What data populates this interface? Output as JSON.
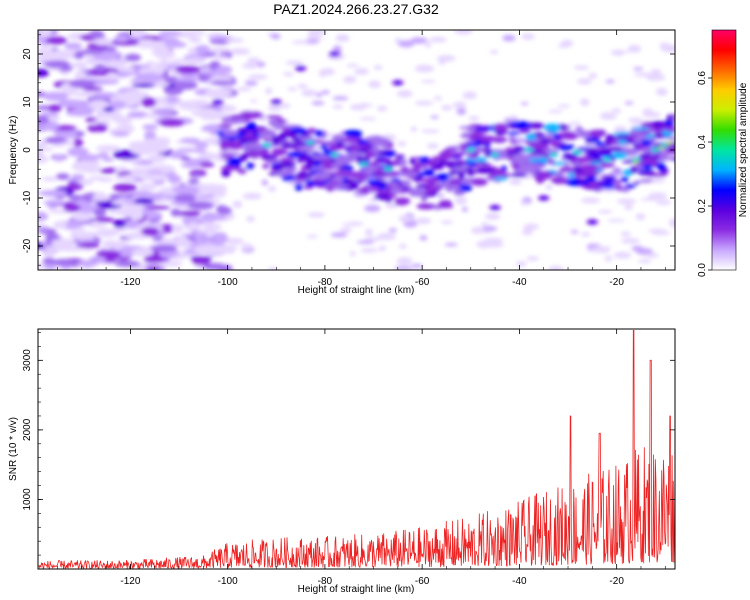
{
  "title": "PAZ1.2024.266.23.27.G32",
  "chart_data": [
    {
      "type": "heatmap",
      "xlabel": "Height of straight line (km)",
      "ylabel": "Frequency (Hz)",
      "xlim": [
        -139,
        -8
      ],
      "ylim": [
        -25,
        25
      ],
      "x_ticks": [
        -120,
        -100,
        -80,
        -60,
        -40,
        -20
      ],
      "y_ticks": [
        -20,
        -10,
        0,
        10,
        20
      ],
      "colorbar": {
        "label": "Normalized spectral amplitude",
        "range": [
          0,
          0.75
        ],
        "ticks": [
          0.0,
          0.2,
          0.4,
          0.6
        ],
        "colors": [
          "#ffffff",
          "#c8a8ff",
          "#8a2be2",
          "#5a00e0",
          "#0000ff",
          "#00b4ff",
          "#00e6a0",
          "#33dd00",
          "#ccee00",
          "#ffcc00",
          "#ff6600",
          "#ff0000",
          "#ff0066"
        ]
      },
      "ridge": [
        {
          "x": -100,
          "y": 1
        },
        {
          "x": -92,
          "y": 2
        },
        {
          "x": -85,
          "y": -2
        },
        {
          "x": -75,
          "y": -2
        },
        {
          "x": -65,
          "y": -5
        },
        {
          "x": -58,
          "y": -8
        },
        {
          "x": -50,
          "y": -1
        },
        {
          "x": -40,
          "y": 0
        },
        {
          "x": -30,
          "y": -1
        },
        {
          "x": -20,
          "y": -3
        },
        {
          "x": -10,
          "y": 1
        }
      ],
      "noise_region": {
        "x_from": -139,
        "x_to": -100,
        "y_from": -25,
        "y_to": 25
      }
    },
    {
      "type": "line",
      "xlabel": "Height of straight line (km)",
      "ylabel": "SNR (10 * v/v)",
      "xlim": [
        -139,
        -8
      ],
      "ylim": [
        0,
        3450
      ],
      "x_ticks": [
        -120,
        -100,
        -80,
        -60,
        -40,
        -20
      ],
      "y_ticks": [
        1000,
        2000,
        3000
      ],
      "color": "#ee2222",
      "envelope": [
        {
          "x": -139,
          "y": 110
        },
        {
          "x": -120,
          "y": 120
        },
        {
          "x": -105,
          "y": 180
        },
        {
          "x": -100,
          "y": 350
        },
        {
          "x": -90,
          "y": 420
        },
        {
          "x": -80,
          "y": 430
        },
        {
          "x": -70,
          "y": 470
        },
        {
          "x": -60,
          "y": 560
        },
        {
          "x": -50,
          "y": 700
        },
        {
          "x": -40,
          "y": 900
        },
        {
          "x": -30,
          "y": 1150
        },
        {
          "x": -20,
          "y": 1400
        },
        {
          "x": -15,
          "y": 1650
        },
        {
          "x": -10,
          "y": 1700
        },
        {
          "x": -8,
          "y": 1750
        }
      ],
      "peaks": [
        {
          "x": -29.5,
          "y": 2200
        },
        {
          "x": -23.5,
          "y": 1950
        },
        {
          "x": -16.5,
          "y": 3430
        },
        {
          "x": -13,
          "y": 3000
        },
        {
          "x": -9,
          "y": 2200
        }
      ]
    }
  ]
}
